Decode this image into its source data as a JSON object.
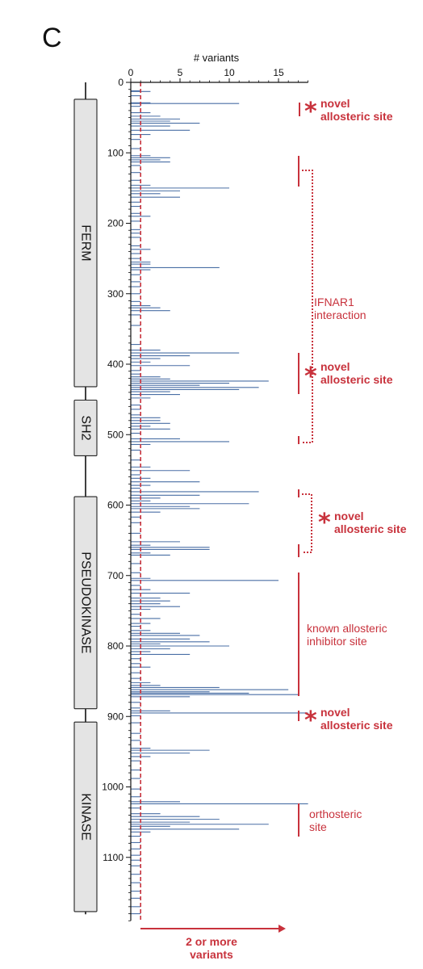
{
  "panel_label": "C",
  "chart_data": {
    "type": "bar",
    "orientation": "horizontal",
    "xlabel": "# variants",
    "xlim": [
      0,
      18
    ],
    "xticks": [
      0,
      5,
      10,
      15
    ],
    "ylim": [
      0,
      1190
    ],
    "yticks": [
      0,
      100,
      200,
      300,
      400,
      500,
      600,
      700,
      800,
      900,
      1000,
      1100
    ],
    "threshold_value": 1,
    "threshold_label": "2 or more variants",
    "colors": {
      "bars": "#4a6fa5",
      "threshold": "#c8323c",
      "annotation": "#c8323c",
      "domain_fill": "#e4e4e4"
    },
    "bars": [
      [
        12,
        1
      ],
      [
        13,
        2
      ],
      [
        19,
        1
      ],
      [
        29,
        2
      ],
      [
        30,
        11
      ],
      [
        34,
        1
      ],
      [
        43,
        2
      ],
      [
        48,
        3
      ],
      [
        52,
        5
      ],
      [
        55,
        4
      ],
      [
        58,
        7
      ],
      [
        62,
        4
      ],
      [
        68,
        6
      ],
      [
        74,
        2
      ],
      [
        81,
        1
      ],
      [
        94,
        1
      ],
      [
        104,
        2
      ],
      [
        107,
        4
      ],
      [
        110,
        3
      ],
      [
        113,
        4
      ],
      [
        118,
        1
      ],
      [
        128,
        1
      ],
      [
        139,
        1
      ],
      [
        146,
        2
      ],
      [
        150,
        10
      ],
      [
        154,
        5
      ],
      [
        158,
        3
      ],
      [
        163,
        5
      ],
      [
        170,
        1
      ],
      [
        176,
        1
      ],
      [
        186,
        1
      ],
      [
        190,
        2
      ],
      [
        197,
        1
      ],
      [
        209,
        1
      ],
      [
        214,
        1
      ],
      [
        220,
        1
      ],
      [
        232,
        1
      ],
      [
        237,
        2
      ],
      [
        243,
        1
      ],
      [
        250,
        1
      ],
      [
        255,
        2
      ],
      [
        258,
        2
      ],
      [
        263,
        9
      ],
      [
        266,
        2
      ],
      [
        273,
        1
      ],
      [
        283,
        1
      ],
      [
        290,
        1
      ],
      [
        300,
        1
      ],
      [
        311,
        1
      ],
      [
        317,
        2
      ],
      [
        320,
        3
      ],
      [
        324,
        4
      ],
      [
        330,
        1
      ],
      [
        345,
        1
      ],
      [
        372,
        1
      ],
      [
        380,
        3
      ],
      [
        384,
        11
      ],
      [
        388,
        6
      ],
      [
        392,
        3
      ],
      [
        397,
        2
      ],
      [
        402,
        6
      ],
      [
        409,
        1
      ],
      [
        414,
        1
      ],
      [
        418,
        3
      ],
      [
        421,
        4
      ],
      [
        424,
        14
      ],
      [
        427,
        10
      ],
      [
        430,
        7
      ],
      [
        433,
        13
      ],
      [
        436,
        11
      ],
      [
        439,
        4
      ],
      [
        443,
        5
      ],
      [
        448,
        2
      ],
      [
        458,
        1
      ],
      [
        464,
        1
      ],
      [
        472,
        1
      ],
      [
        476,
        3
      ],
      [
        480,
        3
      ],
      [
        484,
        4
      ],
      [
        488,
        2
      ],
      [
        492,
        4
      ],
      [
        498,
        1
      ],
      [
        506,
        5
      ],
      [
        510,
        10
      ],
      [
        514,
        2
      ],
      [
        522,
        1
      ],
      [
        536,
        1
      ],
      [
        546,
        2
      ],
      [
        551,
        6
      ],
      [
        557,
        1
      ],
      [
        562,
        2
      ],
      [
        567,
        7
      ],
      [
        572,
        2
      ],
      [
        576,
        1
      ],
      [
        581,
        13
      ],
      [
        586,
        7
      ],
      [
        590,
        3
      ],
      [
        594,
        2
      ],
      [
        598,
        12
      ],
      [
        602,
        6
      ],
      [
        605,
        7
      ],
      [
        610,
        3
      ],
      [
        617,
        1
      ],
      [
        625,
        1
      ],
      [
        640,
        1
      ],
      [
        652,
        5
      ],
      [
        657,
        2
      ],
      [
        660,
        8
      ],
      [
        663,
        8
      ],
      [
        668,
        2
      ],
      [
        671,
        4
      ],
      [
        683,
        1
      ],
      [
        696,
        1
      ],
      [
        704,
        2
      ],
      [
        707,
        15
      ],
      [
        714,
        1
      ],
      [
        720,
        2
      ],
      [
        725,
        6
      ],
      [
        732,
        3
      ],
      [
        736,
        4
      ],
      [
        740,
        3
      ],
      [
        744,
        5
      ],
      [
        748,
        2
      ],
      [
        755,
        1
      ],
      [
        761,
        3
      ],
      [
        768,
        2
      ],
      [
        772,
        1
      ],
      [
        778,
        2
      ],
      [
        782,
        5
      ],
      [
        785,
        7
      ],
      [
        790,
        6
      ],
      [
        794,
        8
      ],
      [
        797,
        3
      ],
      [
        800,
        10
      ],
      [
        804,
        4
      ],
      [
        808,
        2
      ],
      [
        812,
        6
      ],
      [
        818,
        1
      ],
      [
        825,
        1
      ],
      [
        830,
        2
      ],
      [
        838,
        1
      ],
      [
        846,
        1
      ],
      [
        852,
        2
      ],
      [
        856,
        3
      ],
      [
        859,
        9
      ],
      [
        862,
        16
      ],
      [
        865,
        8
      ],
      [
        867,
        12
      ],
      [
        869,
        17
      ],
      [
        872,
        6
      ],
      [
        880,
        1
      ],
      [
        888,
        1
      ],
      [
        892,
        4
      ],
      [
        895,
        18
      ],
      [
        899,
        1
      ],
      [
        909,
        1
      ],
      [
        924,
        1
      ],
      [
        934,
        1
      ],
      [
        945,
        2
      ],
      [
        948,
        8
      ],
      [
        952,
        6
      ],
      [
        957,
        2
      ],
      [
        963,
        1
      ],
      [
        976,
        1
      ],
      [
        988,
        1
      ],
      [
        1003,
        1
      ],
      [
        1014,
        1
      ],
      [
        1021,
        5
      ],
      [
        1024,
        18
      ],
      [
        1030,
        1
      ],
      [
        1038,
        3
      ],
      [
        1042,
        7
      ],
      [
        1046,
        9
      ],
      [
        1050,
        6
      ],
      [
        1053,
        14
      ],
      [
        1056,
        4
      ],
      [
        1060,
        11
      ],
      [
        1064,
        2
      ],
      [
        1070,
        1
      ],
      [
        1079,
        1
      ],
      [
        1088,
        1
      ],
      [
        1097,
        1
      ],
      [
        1104,
        1
      ],
      [
        1112,
        1
      ],
      [
        1124,
        1
      ],
      [
        1136,
        1
      ],
      [
        1148,
        1
      ],
      [
        1158,
        1
      ],
      [
        1170,
        1
      ],
      [
        1180,
        1
      ]
    ]
  },
  "domains": [
    {
      "label": "FERM",
      "start": 24,
      "end": 432
    },
    {
      "label": "SH2",
      "start": 451,
      "end": 530
    },
    {
      "label": "PSEUDOKINASE",
      "start": 588,
      "end": 889
    },
    {
      "label": "KINASE",
      "start": 908,
      "end": 1177
    }
  ],
  "annotations": {
    "novel1": {
      "line1": "novel",
      "line2": "allosteric site",
      "star": "*"
    },
    "ifnar1": {
      "line1": "IFNAR1",
      "line2": "interaction"
    },
    "novel2": {
      "line1": "novel",
      "line2": "allosteric site",
      "star": "*"
    },
    "novel3": {
      "line1": "novel",
      "line2": "allosteric site",
      "star": "*"
    },
    "known": {
      "line1": "known allosteric",
      "line2": "inhibitor site"
    },
    "novel4": {
      "line1": "novel",
      "line2": "allosteric site",
      "star": "*"
    },
    "orthosteric": {
      "line1": "orthosteric",
      "line2": "site"
    }
  },
  "threshold_text": {
    "line1": "2 or more",
    "line2": "variants"
  }
}
